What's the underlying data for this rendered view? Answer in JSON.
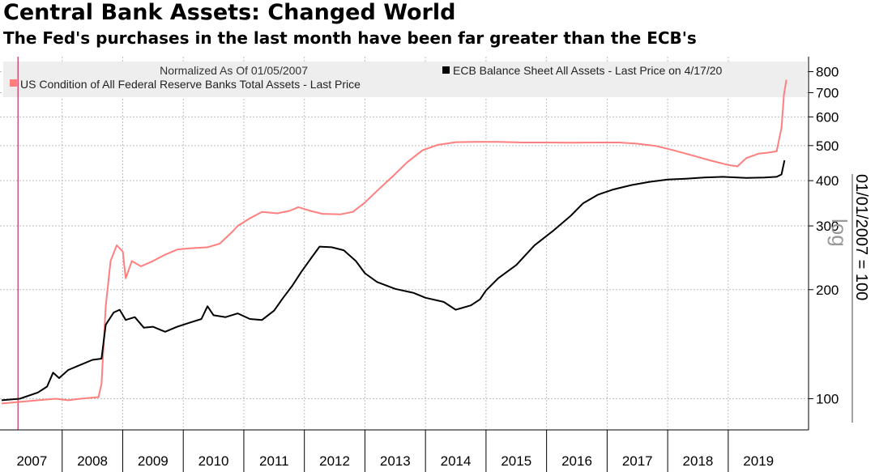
{
  "title": "Central Bank Assets: Changed World",
  "subtitle": "The Fed's purchases in the last month have been far greater than the ECB's",
  "chart_data": {
    "type": "line",
    "scale": "log",
    "normalization_note": "Normalized As Of 01/05/2007",
    "right_axis_label": "01/01/2007 = 100",
    "scale_label": "log",
    "ylim": [
      82,
      880
    ],
    "y_ticks": [
      100,
      200,
      300,
      400,
      500,
      600,
      700,
      800
    ],
    "x_ticks": [
      "2007",
      "2008",
      "2009",
      "2010",
      "2011",
      "2012",
      "2013",
      "2014",
      "2015",
      "2016",
      "2017",
      "2018",
      "2019"
    ],
    "grid": true,
    "legend_position": "top",
    "colors": {
      "ecb": "#000000",
      "fed": "#ff7f7f",
      "marker": "#c0003a"
    },
    "series": [
      {
        "name": "ECB Balance Sheet All Assets - Last Price on 4/17/20",
        "color": "#000000",
        "points": [
          [
            2007.0,
            99
          ],
          [
            2007.3,
            100
          ],
          [
            2007.6,
            104
          ],
          [
            2007.75,
            108
          ],
          [
            2007.85,
            118
          ],
          [
            2007.95,
            114
          ],
          [
            2008.1,
            120
          ],
          [
            2008.3,
            124
          ],
          [
            2008.5,
            128
          ],
          [
            2008.65,
            129
          ],
          [
            2008.72,
            160
          ],
          [
            2008.85,
            173
          ],
          [
            2008.95,
            176
          ],
          [
            2009.05,
            165
          ],
          [
            2009.2,
            168
          ],
          [
            2009.35,
            157
          ],
          [
            2009.5,
            158
          ],
          [
            2009.7,
            153
          ],
          [
            2009.9,
            158
          ],
          [
            2010.1,
            162
          ],
          [
            2010.3,
            166
          ],
          [
            2010.4,
            180
          ],
          [
            2010.5,
            170
          ],
          [
            2010.7,
            168
          ],
          [
            2010.9,
            172
          ],
          [
            2011.1,
            166
          ],
          [
            2011.3,
            165
          ],
          [
            2011.5,
            175
          ],
          [
            2011.65,
            190
          ],
          [
            2011.8,
            205
          ],
          [
            2011.95,
            224
          ],
          [
            2012.1,
            243
          ],
          [
            2012.25,
            263
          ],
          [
            2012.45,
            262
          ],
          [
            2012.65,
            257
          ],
          [
            2012.85,
            240
          ],
          [
            2013.0,
            222
          ],
          [
            2013.2,
            210
          ],
          [
            2013.5,
            201
          ],
          [
            2013.8,
            196
          ],
          [
            2014.0,
            190
          ],
          [
            2014.3,
            185
          ],
          [
            2014.5,
            176
          ],
          [
            2014.75,
            181
          ],
          [
            2014.9,
            188
          ],
          [
            2015.0,
            199
          ],
          [
            2015.2,
            215
          ],
          [
            2015.5,
            234
          ],
          [
            2015.8,
            265
          ],
          [
            2016.1,
            290
          ],
          [
            2016.4,
            320
          ],
          [
            2016.6,
            346
          ],
          [
            2016.85,
            366
          ],
          [
            2017.1,
            378
          ],
          [
            2017.4,
            389
          ],
          [
            2017.7,
            397
          ],
          [
            2018.0,
            403
          ],
          [
            2018.3,
            405
          ],
          [
            2018.6,
            408
          ],
          [
            2018.9,
            410
          ],
          [
            2019.3,
            407
          ],
          [
            2019.6,
            408
          ],
          [
            2019.8,
            410
          ],
          [
            2019.88,
            416
          ],
          [
            2019.93,
            455
          ]
        ]
      },
      {
        "name": "US Condition of All Federal Reserve Banks Total Assets - Last Price",
        "color": "#ff7f7f",
        "points": [
          [
            2007.0,
            97
          ],
          [
            2007.3,
            98
          ],
          [
            2007.6,
            99
          ],
          [
            2007.9,
            100
          ],
          [
            2008.1,
            99
          ],
          [
            2008.3,
            100
          ],
          [
            2008.6,
            101
          ],
          [
            2008.65,
            110
          ],
          [
            2008.72,
            180
          ],
          [
            2008.8,
            240
          ],
          [
            2008.9,
            265
          ],
          [
            2009.0,
            255
          ],
          [
            2009.05,
            215
          ],
          [
            2009.15,
            240
          ],
          [
            2009.3,
            232
          ],
          [
            2009.5,
            240
          ],
          [
            2009.7,
            250
          ],
          [
            2009.9,
            258
          ],
          [
            2010.1,
            260
          ],
          [
            2010.4,
            262
          ],
          [
            2010.6,
            268
          ],
          [
            2010.8,
            288
          ],
          [
            2010.9,
            300
          ],
          [
            2011.1,
            315
          ],
          [
            2011.3,
            328
          ],
          [
            2011.55,
            325
          ],
          [
            2011.75,
            330
          ],
          [
            2011.9,
            338
          ],
          [
            2012.1,
            330
          ],
          [
            2012.3,
            324
          ],
          [
            2012.6,
            323
          ],
          [
            2012.8,
            328
          ],
          [
            2013.0,
            348
          ],
          [
            2013.2,
            375
          ],
          [
            2013.45,
            410
          ],
          [
            2013.7,
            450
          ],
          [
            2013.95,
            485
          ],
          [
            2014.2,
            502
          ],
          [
            2014.5,
            511
          ],
          [
            2014.8,
            512
          ],
          [
            2015.2,
            512
          ],
          [
            2015.6,
            510
          ],
          [
            2016.0,
            510
          ],
          [
            2016.4,
            509
          ],
          [
            2016.8,
            510
          ],
          [
            2017.2,
            510
          ],
          [
            2017.5,
            506
          ],
          [
            2017.8,
            499
          ],
          [
            2018.1,
            485
          ],
          [
            2018.4,
            470
          ],
          [
            2018.7,
            455
          ],
          [
            2019.0,
            442
          ],
          [
            2019.15,
            438
          ],
          [
            2019.3,
            462
          ],
          [
            2019.5,
            475
          ],
          [
            2019.65,
            478
          ],
          [
            2019.8,
            482
          ],
          [
            2019.88,
            560
          ],
          [
            2019.92,
            690
          ],
          [
            2019.96,
            760
          ]
        ]
      }
    ]
  }
}
